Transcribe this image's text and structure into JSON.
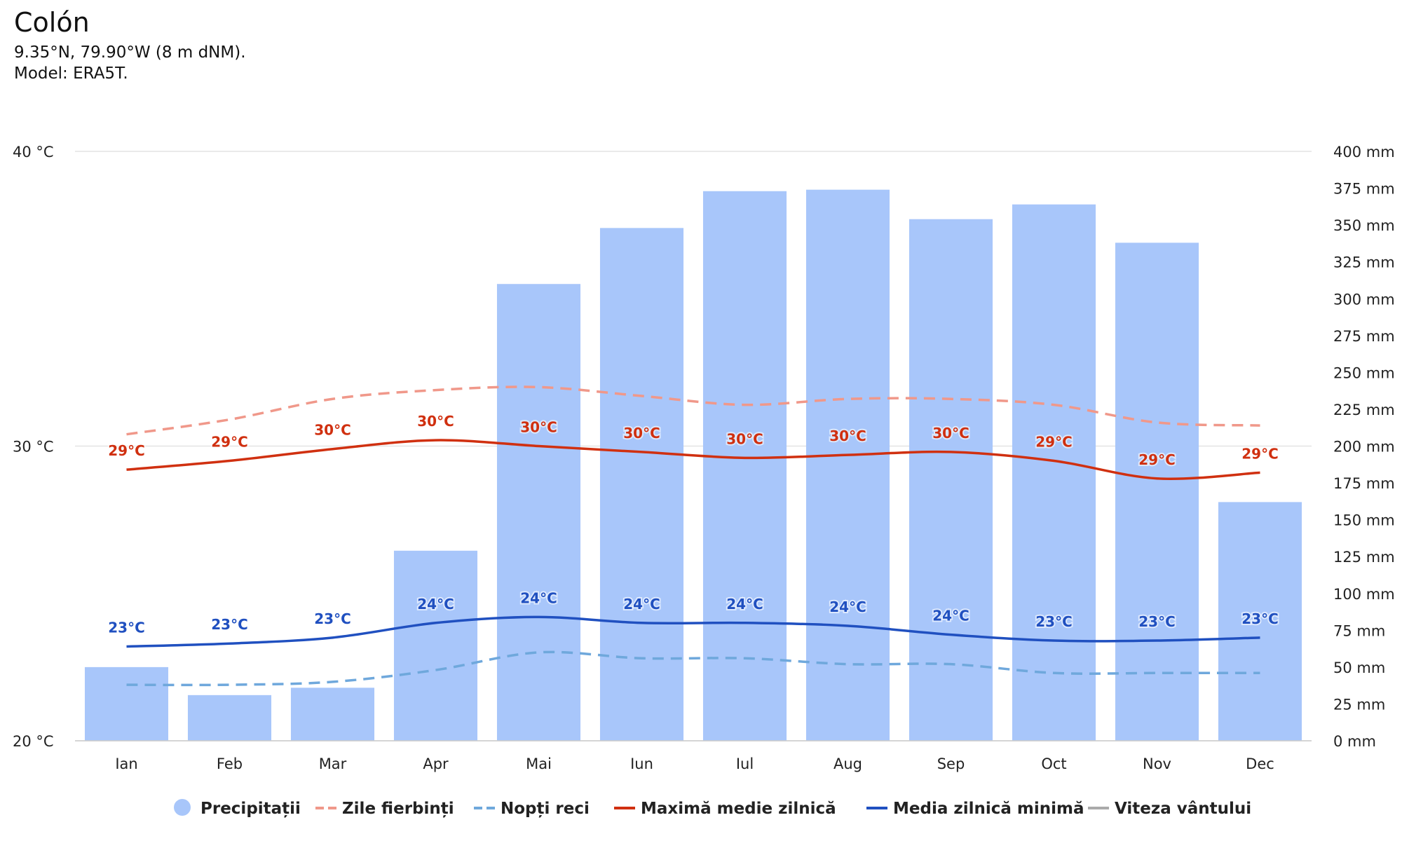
{
  "header": {
    "title": "Colón",
    "coords": "9.35°N, 79.90°W (8 m dNM).",
    "model": "Model: ERA5T."
  },
  "legend": [
    {
      "label": "Precipitații",
      "marker": "dot",
      "color": "#a8c6fa"
    },
    {
      "label": "Zile fierbinți",
      "marker": "dash",
      "color": "#f0988a"
    },
    {
      "label": "Nopți reci",
      "marker": "dash",
      "color": "#6fa8dc"
    },
    {
      "label": "Maximă medie zilnică",
      "marker": "line",
      "color": "#d03010"
    },
    {
      "label": "Media zilnică minimă",
      "marker": "line",
      "color": "#2050c0"
    },
    {
      "label": "Viteza vântului",
      "marker": "line",
      "color": "#aaaaaa"
    }
  ],
  "chart_data": {
    "type": "bar",
    "categories": [
      "Ian",
      "Feb",
      "Mar",
      "Apr",
      "Mai",
      "Iun",
      "Iul",
      "Aug",
      "Sep",
      "Oct",
      "Nov",
      "Dec"
    ],
    "left_axis": {
      "ticks": [
        "40 °C",
        "30 °C",
        "20 °C"
      ],
      "range": [
        20,
        40
      ]
    },
    "right_axis": {
      "ticks": [
        "400 mm",
        "375 mm",
        "350 mm",
        "325 mm",
        "300 mm",
        "275 mm",
        "250 mm",
        "225 mm",
        "200 mm",
        "175 mm",
        "150 mm",
        "125 mm",
        "100 mm",
        "75 mm",
        "50 mm",
        "25 mm",
        "0 mm"
      ],
      "range": [
        0,
        400
      ]
    },
    "grid": true,
    "legend_position": "bottom",
    "series": [
      {
        "name": "Precipitații",
        "kind": "bar",
        "axis": "right",
        "color": "#a8c6fa",
        "values": [
          50,
          31,
          36,
          129,
          310,
          348,
          373,
          374,
          354,
          364,
          338,
          162
        ]
      },
      {
        "name": "Zile fierbinți",
        "kind": "dashed",
        "axis": "left",
        "color": "#f0988a",
        "values": [
          30.4,
          30.9,
          31.6,
          31.9,
          32.0,
          31.7,
          31.4,
          31.6,
          31.6,
          31.4,
          30.8,
          30.7
        ]
      },
      {
        "name": "Nopți reci",
        "kind": "dashed",
        "axis": "left",
        "color": "#6fa8dc",
        "values": [
          21.9,
          21.9,
          22.0,
          22.4,
          23.0,
          22.8,
          22.8,
          22.6,
          22.6,
          22.3,
          22.3,
          22.3
        ]
      },
      {
        "name": "Maximă medie zilnică",
        "kind": "line",
        "axis": "left",
        "color": "#d03010",
        "values": [
          29.2,
          29.5,
          29.9,
          30.2,
          30.0,
          29.8,
          29.6,
          29.7,
          29.8,
          29.5,
          28.9,
          29.1
        ],
        "labels": [
          "29°C",
          "29°C",
          "30°C",
          "30°C",
          "30°C",
          "30°C",
          "30°C",
          "30°C",
          "30°C",
          "29°C",
          "29°C",
          "29°C"
        ]
      },
      {
        "name": "Media zilnică minimă",
        "kind": "line",
        "axis": "left",
        "color": "#2050c0",
        "values": [
          23.2,
          23.3,
          23.5,
          24.0,
          24.2,
          24.0,
          24.0,
          23.9,
          23.6,
          23.4,
          23.4,
          23.5
        ],
        "labels": [
          "23°C",
          "23°C",
          "23°C",
          "24°C",
          "24°C",
          "24°C",
          "24°C",
          "24°C",
          "24°C",
          "23°C",
          "23°C",
          "23°C"
        ]
      }
    ]
  }
}
